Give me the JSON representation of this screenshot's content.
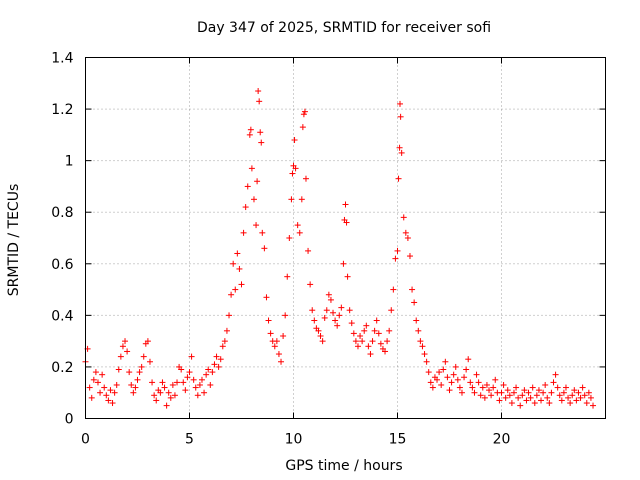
{
  "chart_data": {
    "type": "scatter",
    "title": "Day 347 of 2025, SRMTID for receiver sofi",
    "xlabel": "GPS time / hours",
    "ylabel": "SRMTID / TECUs",
    "xlim": [
      0,
      25
    ],
    "ylim": [
      0,
      1.4
    ],
    "xticks": [
      0,
      5,
      10,
      15,
      20
    ],
    "xtick_labels": [
      "0",
      "5",
      "10",
      "15",
      "20"
    ],
    "yticks": [
      0,
      0.2,
      0.4,
      0.6,
      0.8,
      1.0,
      1.2,
      1.4
    ],
    "ytick_labels": [
      "0",
      "0.2",
      "0.4",
      "0.6",
      "0.8",
      "1",
      "1.2",
      "1.4"
    ],
    "grid": true,
    "marker": "+",
    "color": "#ff0000",
    "series": [
      {
        "name": "SRMTID",
        "points": [
          [
            0.0,
            0.22
          ],
          [
            0.1,
            0.27
          ],
          [
            0.2,
            0.12
          ],
          [
            0.3,
            0.08
          ],
          [
            0.4,
            0.15
          ],
          [
            0.5,
            0.18
          ],
          [
            0.6,
            0.14
          ],
          [
            0.7,
            0.1
          ],
          [
            0.8,
            0.17
          ],
          [
            0.9,
            0.12
          ],
          [
            1.0,
            0.09
          ],
          [
            1.1,
            0.07
          ],
          [
            1.2,
            0.11
          ],
          [
            1.3,
            0.06
          ],
          [
            1.4,
            0.1
          ],
          [
            1.5,
            0.13
          ],
          [
            1.6,
            0.19
          ],
          [
            1.7,
            0.24
          ],
          [
            1.8,
            0.28
          ],
          [
            1.9,
            0.3
          ],
          [
            2.0,
            0.26
          ],
          [
            2.1,
            0.18
          ],
          [
            2.2,
            0.13
          ],
          [
            2.3,
            0.1
          ],
          [
            2.4,
            0.12
          ],
          [
            2.5,
            0.15
          ],
          [
            2.6,
            0.18
          ],
          [
            2.7,
            0.2
          ],
          [
            2.8,
            0.24
          ],
          [
            2.9,
            0.29
          ],
          [
            3.0,
            0.3
          ],
          [
            3.1,
            0.22
          ],
          [
            3.2,
            0.14
          ],
          [
            3.3,
            0.09
          ],
          [
            3.4,
            0.07
          ],
          [
            3.5,
            0.11
          ],
          [
            3.6,
            0.1
          ],
          [
            3.7,
            0.14
          ],
          [
            3.8,
            0.12
          ],
          [
            3.9,
            0.05
          ],
          [
            4.0,
            0.1
          ],
          [
            4.1,
            0.08
          ],
          [
            4.2,
            0.13
          ],
          [
            4.3,
            0.09
          ],
          [
            4.4,
            0.14
          ],
          [
            4.5,
            0.2
          ],
          [
            4.6,
            0.19
          ],
          [
            4.7,
            0.14
          ],
          [
            4.8,
            0.11
          ],
          [
            4.9,
            0.16
          ],
          [
            5.0,
            0.18
          ],
          [
            5.1,
            0.24
          ],
          [
            5.2,
            0.15
          ],
          [
            5.3,
            0.12
          ],
          [
            5.4,
            0.09
          ],
          [
            5.5,
            0.13
          ],
          [
            5.6,
            0.15
          ],
          [
            5.7,
            0.1
          ],
          [
            5.8,
            0.17
          ],
          [
            5.9,
            0.19
          ],
          [
            6.0,
            0.13
          ],
          [
            6.1,
            0.18
          ],
          [
            6.2,
            0.21
          ],
          [
            6.3,
            0.24
          ],
          [
            6.4,
            0.2
          ],
          [
            6.5,
            0.23
          ],
          [
            6.6,
            0.28
          ],
          [
            6.7,
            0.3
          ],
          [
            6.8,
            0.34
          ],
          [
            6.9,
            0.4
          ],
          [
            7.0,
            0.48
          ],
          [
            7.1,
            0.6
          ],
          [
            7.2,
            0.5
          ],
          [
            7.3,
            0.64
          ],
          [
            7.4,
            0.58
          ],
          [
            7.5,
            0.52
          ],
          [
            7.6,
            0.72
          ],
          [
            7.7,
            0.82
          ],
          [
            7.8,
            0.9
          ],
          [
            7.9,
            1.1
          ],
          [
            7.95,
            1.12
          ],
          [
            8.0,
            0.97
          ],
          [
            8.1,
            0.85
          ],
          [
            8.2,
            0.75
          ],
          [
            8.25,
            0.92
          ],
          [
            8.3,
            1.27
          ],
          [
            8.35,
            1.23
          ],
          [
            8.4,
            1.11
          ],
          [
            8.45,
            1.07
          ],
          [
            8.5,
            0.72
          ],
          [
            8.6,
            0.66
          ],
          [
            8.7,
            0.47
          ],
          [
            8.8,
            0.38
          ],
          [
            8.9,
            0.33
          ],
          [
            9.0,
            0.3
          ],
          [
            9.1,
            0.28
          ],
          [
            9.2,
            0.3
          ],
          [
            9.3,
            0.25
          ],
          [
            9.4,
            0.22
          ],
          [
            9.5,
            0.32
          ],
          [
            9.6,
            0.4
          ],
          [
            9.7,
            0.55
          ],
          [
            9.8,
            0.7
          ],
          [
            9.9,
            0.85
          ],
          [
            9.95,
            0.95
          ],
          [
            10.0,
            0.98
          ],
          [
            10.05,
            1.08
          ],
          [
            10.1,
            0.97
          ],
          [
            10.2,
            0.75
          ],
          [
            10.3,
            0.72
          ],
          [
            10.4,
            0.85
          ],
          [
            10.45,
            1.13
          ],
          [
            10.5,
            1.18
          ],
          [
            10.55,
            1.19
          ],
          [
            10.6,
            0.93
          ],
          [
            10.7,
            0.65
          ],
          [
            10.8,
            0.52
          ],
          [
            10.9,
            0.42
          ],
          [
            11.0,
            0.38
          ],
          [
            11.1,
            0.35
          ],
          [
            11.2,
            0.34
          ],
          [
            11.3,
            0.32
          ],
          [
            11.4,
            0.3
          ],
          [
            11.5,
            0.39
          ],
          [
            11.6,
            0.42
          ],
          [
            11.7,
            0.48
          ],
          [
            11.8,
            0.46
          ],
          [
            11.9,
            0.41
          ],
          [
            12.0,
            0.38
          ],
          [
            12.1,
            0.36
          ],
          [
            12.2,
            0.4
          ],
          [
            12.3,
            0.43
          ],
          [
            12.4,
            0.6
          ],
          [
            12.45,
            0.77
          ],
          [
            12.5,
            0.83
          ],
          [
            12.55,
            0.76
          ],
          [
            12.6,
            0.55
          ],
          [
            12.7,
            0.42
          ],
          [
            12.8,
            0.37
          ],
          [
            12.9,
            0.33
          ],
          [
            13.0,
            0.3
          ],
          [
            13.1,
            0.28
          ],
          [
            13.2,
            0.32
          ],
          [
            13.3,
            0.3
          ],
          [
            13.4,
            0.34
          ],
          [
            13.5,
            0.36
          ],
          [
            13.6,
            0.28
          ],
          [
            13.7,
            0.25
          ],
          [
            13.8,
            0.3
          ],
          [
            13.9,
            0.34
          ],
          [
            14.0,
            0.38
          ],
          [
            14.1,
            0.33
          ],
          [
            14.2,
            0.29
          ],
          [
            14.3,
            0.27
          ],
          [
            14.4,
            0.26
          ],
          [
            14.5,
            0.3
          ],
          [
            14.6,
            0.34
          ],
          [
            14.7,
            0.42
          ],
          [
            14.8,
            0.5
          ],
          [
            14.9,
            0.62
          ],
          [
            15.0,
            0.65
          ],
          [
            15.05,
            0.93
          ],
          [
            15.1,
            1.05
          ],
          [
            15.12,
            1.22
          ],
          [
            15.15,
            1.17
          ],
          [
            15.2,
            1.03
          ],
          [
            15.3,
            0.78
          ],
          [
            15.4,
            0.72
          ],
          [
            15.5,
            0.7
          ],
          [
            15.6,
            0.63
          ],
          [
            15.7,
            0.5
          ],
          [
            15.8,
            0.45
          ],
          [
            15.9,
            0.38
          ],
          [
            16.0,
            0.34
          ],
          [
            16.1,
            0.3
          ],
          [
            16.2,
            0.28
          ],
          [
            16.3,
            0.25
          ],
          [
            16.4,
            0.22
          ],
          [
            16.5,
            0.18
          ],
          [
            16.6,
            0.14
          ],
          [
            16.7,
            0.12
          ],
          [
            16.8,
            0.16
          ],
          [
            16.9,
            0.15
          ],
          [
            17.0,
            0.18
          ],
          [
            17.1,
            0.13
          ],
          [
            17.2,
            0.19
          ],
          [
            17.3,
            0.22
          ],
          [
            17.4,
            0.16
          ],
          [
            17.5,
            0.11
          ],
          [
            17.6,
            0.14
          ],
          [
            17.7,
            0.17
          ],
          [
            17.8,
            0.2
          ],
          [
            17.9,
            0.15
          ],
          [
            18.0,
            0.12
          ],
          [
            18.1,
            0.1
          ],
          [
            18.2,
            0.16
          ],
          [
            18.3,
            0.19
          ],
          [
            18.4,
            0.23
          ],
          [
            18.5,
            0.14
          ],
          [
            18.6,
            0.12
          ],
          [
            18.7,
            0.1
          ],
          [
            18.8,
            0.17
          ],
          [
            18.9,
            0.14
          ],
          [
            19.0,
            0.09
          ],
          [
            19.1,
            0.12
          ],
          [
            19.2,
            0.08
          ],
          [
            19.3,
            0.13
          ],
          [
            19.4,
            0.11
          ],
          [
            19.5,
            0.09
          ],
          [
            19.6,
            0.12
          ],
          [
            19.7,
            0.15
          ],
          [
            19.8,
            0.1
          ],
          [
            19.9,
            0.07
          ],
          [
            20.0,
            0.1
          ],
          [
            20.1,
            0.13
          ],
          [
            20.2,
            0.08
          ],
          [
            20.3,
            0.11
          ],
          [
            20.4,
            0.09
          ],
          [
            20.5,
            0.06
          ],
          [
            20.6,
            0.1
          ],
          [
            20.7,
            0.12
          ],
          [
            20.8,
            0.08
          ],
          [
            20.9,
            0.05
          ],
          [
            21.0,
            0.09
          ],
          [
            21.1,
            0.11
          ],
          [
            21.2,
            0.07
          ],
          [
            21.3,
            0.1
          ],
          [
            21.4,
            0.08
          ],
          [
            21.5,
            0.12
          ],
          [
            21.6,
            0.06
          ],
          [
            21.7,
            0.09
          ],
          [
            21.8,
            0.11
          ],
          [
            21.9,
            0.07
          ],
          [
            22.0,
            0.1
          ],
          [
            22.1,
            0.13
          ],
          [
            22.2,
            0.08
          ],
          [
            22.3,
            0.06
          ],
          [
            22.4,
            0.1
          ],
          [
            22.5,
            0.14
          ],
          [
            22.6,
            0.17
          ],
          [
            22.7,
            0.12
          ],
          [
            22.8,
            0.09
          ],
          [
            22.9,
            0.07
          ],
          [
            23.0,
            0.1
          ],
          [
            23.1,
            0.12
          ],
          [
            23.2,
            0.08
          ],
          [
            23.3,
            0.06
          ],
          [
            23.4,
            0.09
          ],
          [
            23.5,
            0.11
          ],
          [
            23.6,
            0.07
          ],
          [
            23.7,
            0.1
          ],
          [
            23.8,
            0.08
          ],
          [
            23.9,
            0.12
          ],
          [
            24.0,
            0.09
          ],
          [
            24.1,
            0.06
          ],
          [
            24.2,
            0.1
          ],
          [
            24.3,
            0.08
          ],
          [
            24.4,
            0.05
          ]
        ]
      }
    ]
  }
}
